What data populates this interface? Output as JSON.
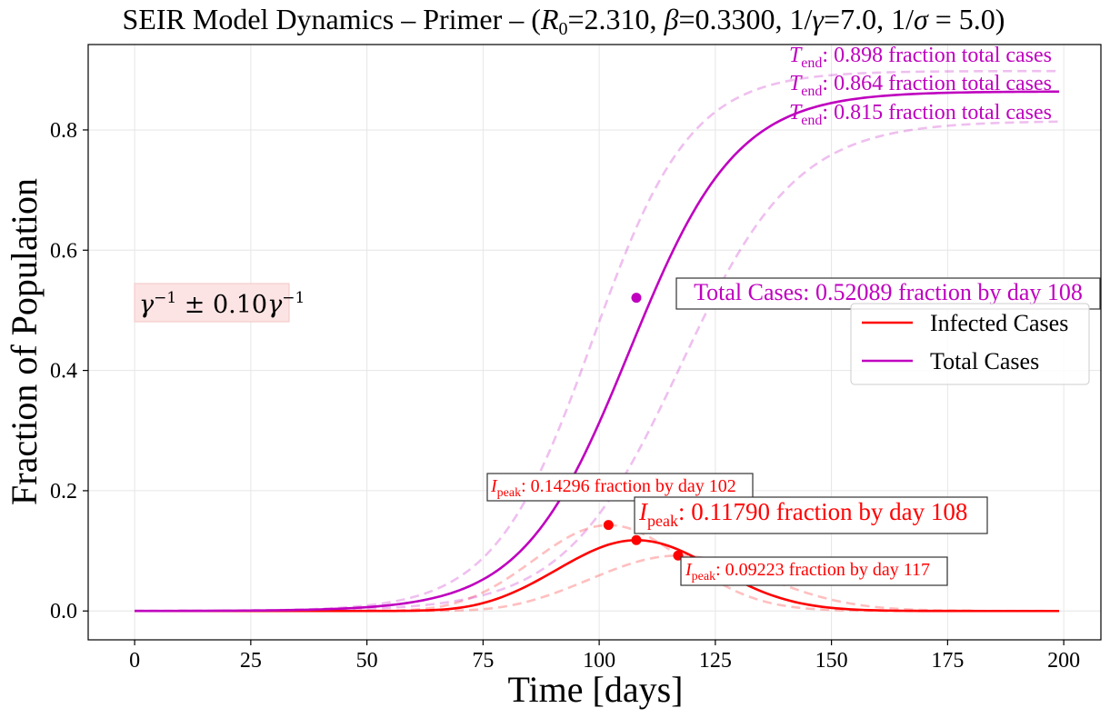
{
  "chart_data": {
    "type": "line",
    "title": "SEIR Model Dynamics – Primer – (R0=2.310, β=0.3300, 1/γ=7.0, 1/σ = 5.0)",
    "title_parts": {
      "prefix": "SEIR Model Dynamics – Primer – (",
      "r0_symbol": "R",
      "r0_sub": "0",
      "r0_value": "=2.310, ",
      "beta_symbol": "β",
      "beta_value": "=0.3300, 1/",
      "gamma_symbol": "γ",
      "gamma_value": "=7.0, 1/",
      "sigma_symbol": "σ",
      "sigma_value": " = 5.0)"
    },
    "xlabel": "Time [days]",
    "ylabel": "Fraction of Population",
    "xlim": [
      -10,
      208
    ],
    "ylim": [
      -0.048,
      0.942
    ],
    "xticks": [
      0,
      25,
      50,
      75,
      100,
      125,
      150,
      175,
      200
    ],
    "yticks": [
      0.0,
      0.2,
      0.4,
      0.6,
      0.8
    ],
    "ytick_labels": [
      "0.0",
      "0.2",
      "0.4",
      "0.6",
      "0.8"
    ],
    "grid": true,
    "legend_position": "center-right",
    "legend": [
      {
        "label": "Infected Cases",
        "color": "#ff0000"
      },
      {
        "label": "Total Cases",
        "color": "#bf00bf"
      }
    ],
    "x_range": [
      0,
      199
    ],
    "series": [
      {
        "name": "Infected Cases",
        "role": "main",
        "color": "#ff0000",
        "style": "solid",
        "peak_x": 108,
        "peak_y": 0.1179,
        "width": 16.8,
        "start": 0.0
      },
      {
        "name": "",
        "role": "band-low-gamma",
        "color": "#ff0000",
        "style": "dashed",
        "opacity": 0.25,
        "peak_x": 102,
        "peak_y": 0.14296,
        "width": 16.0,
        "start": 0.0
      },
      {
        "name": "",
        "role": "band-high-gamma",
        "color": "#ff0000",
        "style": "dashed",
        "opacity": 0.25,
        "peak_x": 117,
        "peak_y": 0.09223,
        "width": 18.5,
        "start": 0.0
      },
      {
        "name": "Total Cases",
        "role": "main",
        "color": "#bf00bf",
        "style": "solid",
        "mid_x": 106.5,
        "scale": 11.5,
        "final": 0.864
      },
      {
        "name": "",
        "role": "band-upper",
        "color": "#bf00bf",
        "style": "dashed",
        "opacity": 0.25,
        "mid_x": 98.5,
        "scale": 10.6,
        "final": 0.898
      },
      {
        "name": "",
        "role": "band-lower",
        "color": "#bf00bf",
        "style": "dashed",
        "opacity": 0.25,
        "mid_x": 117.5,
        "scale": 12.5,
        "final": 0.815
      }
    ],
    "markers": [
      {
        "x": 108,
        "y": 0.52089,
        "color": "#bf00bf"
      },
      {
        "x": 102,
        "y": 0.14296,
        "color": "#ff0000"
      },
      {
        "x": 108,
        "y": 0.1179,
        "color": "#ff0000"
      },
      {
        "x": 117,
        "y": 0.09223,
        "color": "#ff0000"
      }
    ],
    "annotations": {
      "tend_symbol": "T",
      "tend_sub": "end",
      "tend_1": ": 0.898 fraction total cases",
      "tend_2": ": 0.864 fraction total cases",
      "tend_3": ": 0.815 fraction total cases",
      "total_cases": "Total Cases: 0.52089 fraction by day 108",
      "ipeak_symbol": "I",
      "ipeak_sub": "peak",
      "ipeak_1": ": 0.14296 fraction by day 102",
      "ipeak_2": ": 0.11790 fraction by day 108",
      "ipeak_3": ": 0.09223 fraction by day 117",
      "gamma_box_symbol": "γ",
      "gamma_box_sup": "−1",
      "gamma_box_mid": " ± 0.10",
      "gamma_box_symbol2": "γ",
      "gamma_box_sup2": "−1"
    },
    "colors": {
      "infected": "#ff0000",
      "total": "#bf00bf",
      "gamma_box_fill": "#fde4e4"
    }
  }
}
